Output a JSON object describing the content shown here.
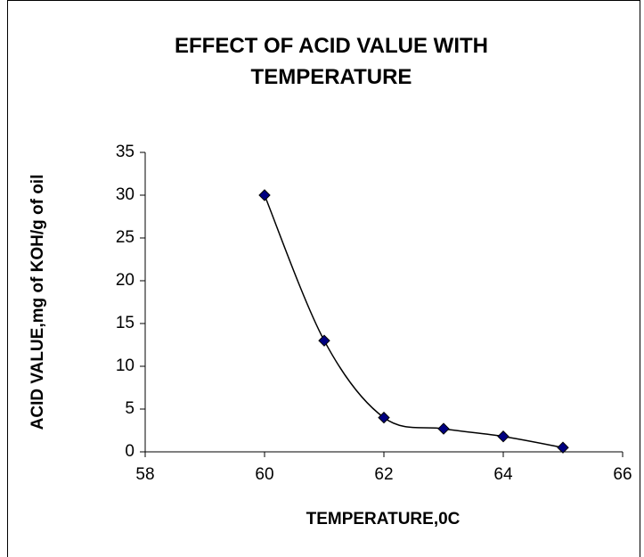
{
  "chart_data": {
    "type": "scatter",
    "title": "EFFECT OF ACID VALUE WITH TEMPERATURE",
    "x_label": "TEMPERATURE,0C",
    "y_label": "ACID VALUE,mg of KOH/g of oil",
    "x": [
      60,
      61,
      62,
      63,
      64,
      65
    ],
    "values": [
      30,
      13,
      4,
      2.7,
      1.8,
      0.5
    ],
    "color": "#000080",
    "line_color": "#000000",
    "smooth": true,
    "xlim": [
      58,
      66
    ],
    "xticks": [
      58,
      60,
      62,
      64,
      66
    ],
    "ylim": [
      0,
      35
    ],
    "yticks": [
      0,
      5,
      10,
      15,
      20,
      25,
      30,
      35
    ],
    "grid": false
  }
}
